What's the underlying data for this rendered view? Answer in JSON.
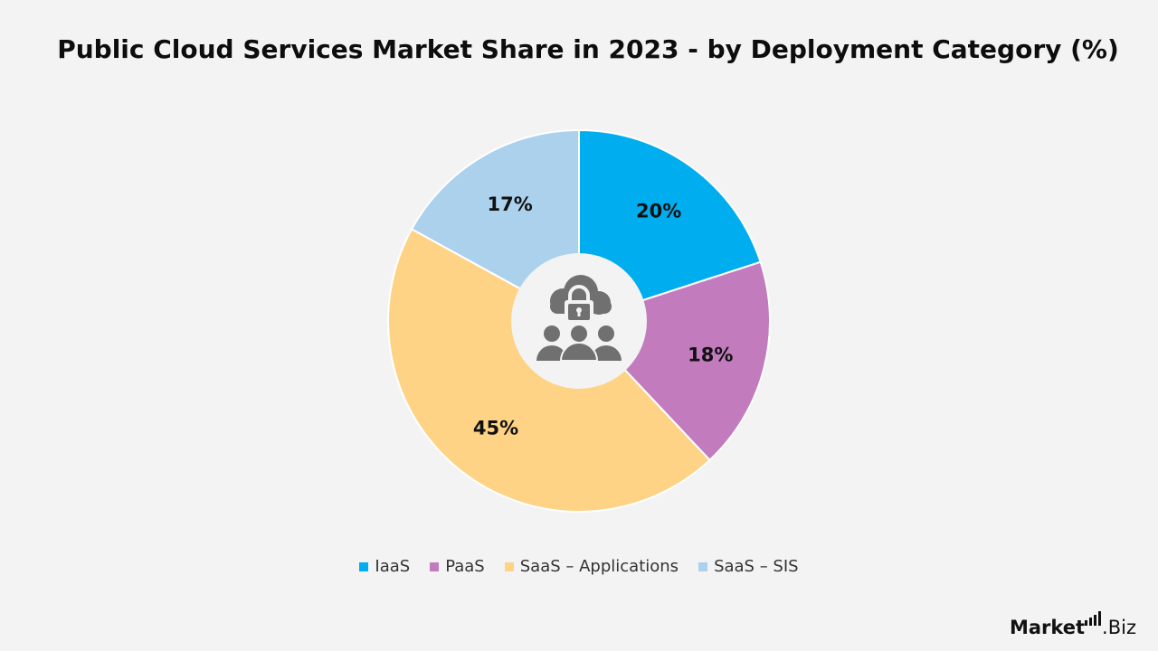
{
  "title": "Public Cloud Services Market Share in 2023 - by Deployment Category (%)",
  "chart_data": {
    "type": "pie",
    "donut": true,
    "center_icon": "cloud-lock-users-icon",
    "slices": [
      {
        "label": "IaaS",
        "value": 20,
        "display": "20%",
        "color": "#00aeef"
      },
      {
        "label": "PaaS",
        "value": 18,
        "display": "18%",
        "color": "#c27bbd"
      },
      {
        "label": "SaaS – Applications",
        "value": 45,
        "display": "45%",
        "color": "#fed386"
      },
      {
        "label": "SaaS – SIS",
        "value": 17,
        "display": "17%",
        "color": "#abd1ec"
      }
    ],
    "legend_position": "bottom",
    "start_angle": "top, clockwise"
  },
  "brand": {
    "name_bold": "Market",
    "name_rest": ".Biz"
  }
}
